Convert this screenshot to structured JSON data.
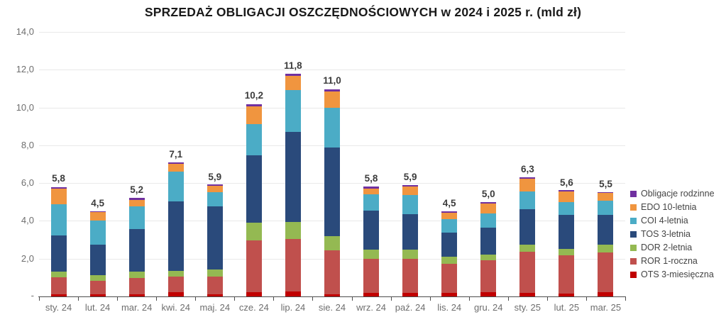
{
  "title": "SPRZEDAŻ OBLIGACJI OSZCZĘDNOŚCIOWYCH w 2024 i 2025 r. (mld zł)",
  "y_axis": {
    "tick_values": [
      14,
      12,
      10,
      8,
      6,
      4,
      2
    ],
    "tick_labels": [
      "14,0",
      "12,0",
      "10,0",
      "8,0",
      "6,0",
      "4,0",
      "2,0"
    ],
    "zero_label": "-"
  },
  "chart_data": {
    "type": "stacked-bar",
    "title": "SPRZEDAŻ OBLIGACJI OSZCZĘDNOŚCIOWYCH w 2024 i 2025 r. (mld zł)",
    "unit": "mld zł",
    "ylim": [
      0,
      14
    ],
    "grid": true,
    "legend_position": "right",
    "categories": [
      "sty. 24",
      "lut. 24",
      "mar. 24",
      "kwi. 24",
      "maj. 24",
      "cze. 24",
      "lip. 24",
      "sie. 24",
      "wrz. 24",
      "paź. 24",
      "lis. 24",
      "gru. 24",
      "sty. 25",
      "lut. 25",
      "mar. 25"
    ],
    "totals": [
      5.8,
      4.5,
      5.2,
      7.1,
      5.9,
      10.2,
      11.8,
      11.0,
      5.8,
      5.9,
      4.5,
      5.0,
      6.3,
      5.6,
      5.5
    ],
    "totals_labels": [
      "5,8",
      "4,5",
      "5,2",
      "7,1",
      "5,9",
      "10,2",
      "11,8",
      "11,0",
      "5,8",
      "5,9",
      "4,5",
      "5,0",
      "6,3",
      "5,6",
      "5,5"
    ],
    "series": [
      {
        "name": "OTS 3-miesięczna",
        "color": "#C00000",
        "values": [
          0.12,
          0.1,
          0.12,
          0.22,
          0.1,
          0.21,
          0.28,
          0.12,
          0.19,
          0.2,
          0.19,
          0.21,
          0.19,
          0.15,
          0.23
        ]
      },
      {
        "name": "ROR 1-roczna",
        "color": "#C0504D",
        "values": [
          0.91,
          0.71,
          0.87,
          0.84,
          0.96,
          2.75,
          2.77,
          2.31,
          1.81,
          1.8,
          1.55,
          1.69,
          2.18,
          2.04,
          2.1
        ]
      },
      {
        "name": "DOR 2-letnia",
        "color": "#94B952",
        "values": [
          0.28,
          0.31,
          0.31,
          0.31,
          0.35,
          0.95,
          0.9,
          0.75,
          0.46,
          0.46,
          0.35,
          0.33,
          0.38,
          0.34,
          0.4
        ]
      },
      {
        "name": "TOS 3-letnia",
        "color": "#2A4A7B",
        "values": [
          1.93,
          1.63,
          2.28,
          3.66,
          3.36,
          3.55,
          4.77,
          4.69,
          2.08,
          1.88,
          1.28,
          1.43,
          1.88,
          1.79,
          1.59
        ]
      },
      {
        "name": "COI 4-letnia",
        "color": "#4BACC6",
        "values": [
          1.65,
          1.25,
          1.19,
          1.56,
          0.75,
          1.66,
          2.21,
          2.12,
          0.86,
          1.04,
          0.73,
          0.75,
          0.91,
          0.66,
          0.75
        ]
      },
      {
        "name": "EDO 10-letnia",
        "color": "#F0953F",
        "values": [
          0.8,
          0.46,
          0.35,
          0.42,
          0.33,
          0.94,
          0.75,
          0.84,
          0.31,
          0.44,
          0.34,
          0.5,
          0.69,
          0.56,
          0.41
        ]
      },
      {
        "name": "Obligacje rodzinne",
        "color": "#7030A0",
        "values": [
          0.1,
          0.05,
          0.08,
          0.07,
          0.08,
          0.1,
          0.1,
          0.13,
          0.1,
          0.08,
          0.07,
          0.1,
          0.07,
          0.08,
          0.05
        ]
      }
    ]
  },
  "legend": {
    "items": [
      {
        "label": "Obligacje rodzinne",
        "color": "#7030A0"
      },
      {
        "label": "EDO 10-letnia",
        "color": "#F0953F"
      },
      {
        "label": "COI 4-letnia",
        "color": "#4BACC6"
      },
      {
        "label": "TOS 3-letnia",
        "color": "#2A4A7B"
      },
      {
        "label": "DOR 2-letnia",
        "color": "#94B952"
      },
      {
        "label": "ROR 1-roczna",
        "color": "#C0504D"
      },
      {
        "label": "OTS 3-miesięczna",
        "color": "#C00000"
      }
    ]
  }
}
